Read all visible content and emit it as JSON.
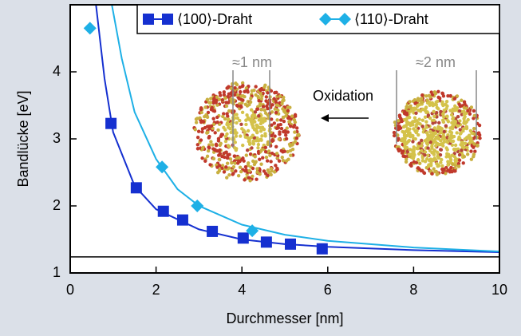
{
  "chart_data": {
    "type": "scatter",
    "x_label": "Durchmesser [nm]",
    "y_label": "Bandlücke [eV]",
    "xlim": [
      0,
      10
    ],
    "ylim": [
      1,
      5
    ],
    "xticks": [
      0,
      2,
      4,
      6,
      8,
      10
    ],
    "yticks": [
      1,
      2,
      3,
      4
    ],
    "series": [
      {
        "name": "⟨100⟩-Draht",
        "color": "#1530d0",
        "marker": "square",
        "x": [
          0.95,
          1.54,
          2.17,
          2.62,
          3.31,
          4.03,
          4.57,
          5.13,
          5.87
        ],
        "values": [
          3.23,
          2.27,
          1.92,
          1.79,
          1.62,
          1.52,
          1.46,
          1.43,
          1.36
        ]
      },
      {
        "name": "⟨110⟩-Draht",
        "color": "#1eb0e6",
        "marker": "diamond",
        "x": [
          0.46,
          2.14,
          2.96,
          4.24
        ],
        "values": [
          4.65,
          2.58,
          2.0,
          1.63
        ]
      }
    ],
    "curves": [
      {
        "color": "#1530d0",
        "x": [
          0.6,
          0.8,
          1,
          1.5,
          2,
          3,
          4,
          5,
          6,
          8,
          10
        ],
        "values": [
          5,
          3.9,
          3.1,
          2.3,
          1.95,
          1.65,
          1.5,
          1.43,
          1.39,
          1.34,
          1.31
        ]
      },
      {
        "color": "#1eb0e6",
        "x": [
          0.97,
          1.2,
          1.5,
          2,
          2.5,
          3,
          4,
          5,
          6,
          8,
          10
        ],
        "values": [
          5,
          4.2,
          3.4,
          2.7,
          2.25,
          2.0,
          1.72,
          1.57,
          1.48,
          1.38,
          1.32
        ]
      }
    ],
    "reference_line": 1.24,
    "annotations": [
      "≈1 nm",
      "≈2 nm",
      "Oxidation"
    ],
    "legend": "top-right"
  }
}
